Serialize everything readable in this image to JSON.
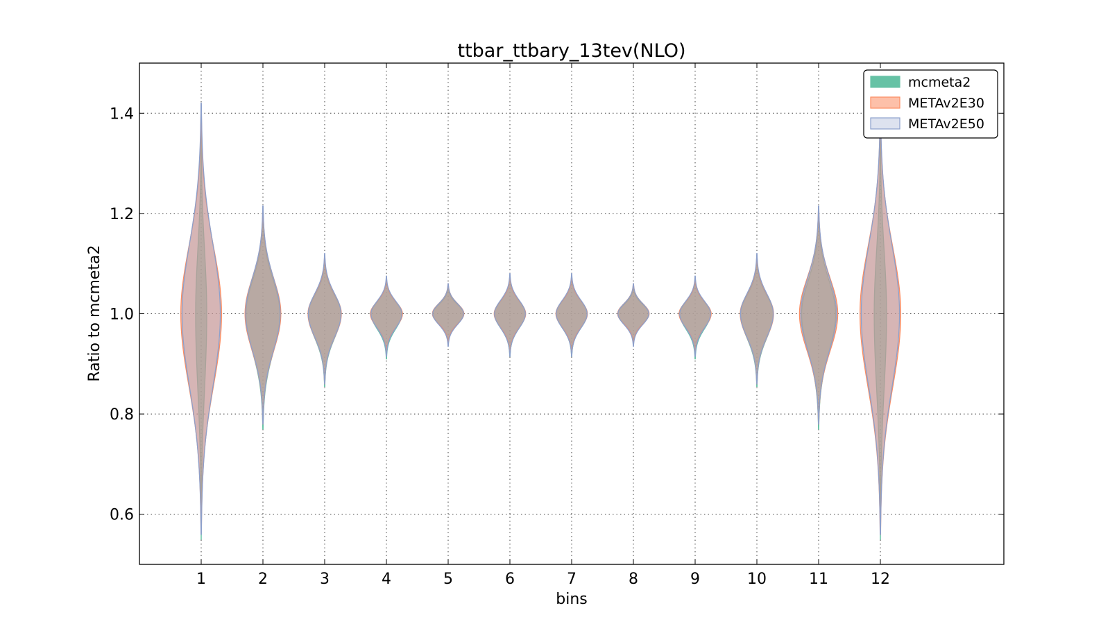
{
  "chart_data": {
    "type": "violin",
    "title": "ttbar_ttbary_13tev(NLO)",
    "xlabel": "bins",
    "ylabel": "Ratio to mcmeta2",
    "xlim": [
      0,
      14
    ],
    "ylim": [
      0.5,
      1.5
    ],
    "grid": true,
    "legend_position": "top-right",
    "x_ticks": [
      "1",
      "2",
      "3",
      "4",
      "5",
      "6",
      "7",
      "8",
      "9",
      "10",
      "11",
      "12"
    ],
    "y_ticks": [
      "0.6",
      "0.8",
      "1.0",
      "1.2",
      "1.4"
    ],
    "y_tick_values": [
      0.6,
      0.8,
      1.0,
      1.2,
      1.4
    ],
    "series": [
      {
        "name": "mcmeta2",
        "color": "#66c2a5",
        "bins": [
          {
            "bin": 1,
            "min": 0.55,
            "max": 1.38,
            "center": 1.0,
            "width": 0.18
          },
          {
            "bin": 2,
            "min": 0.77,
            "max": 1.2,
            "center": 1.0,
            "width": 0.55
          },
          {
            "bin": 3,
            "min": 0.855,
            "max": 1.11,
            "center": 1.0,
            "width": 0.53
          },
          {
            "bin": 4,
            "min": 0.91,
            "max": 1.07,
            "center": 1.0,
            "width": 0.5
          },
          {
            "bin": 5,
            "min": 0.94,
            "max": 1.055,
            "center": 1.0,
            "width": 0.5
          },
          {
            "bin": 6,
            "min": 0.915,
            "max": 1.075,
            "center": 1.0,
            "width": 0.5
          },
          {
            "bin": 7,
            "min": 0.915,
            "max": 1.075,
            "center": 1.0,
            "width": 0.5
          },
          {
            "bin": 8,
            "min": 0.94,
            "max": 1.055,
            "center": 1.0,
            "width": 0.5
          },
          {
            "bin": 9,
            "min": 0.91,
            "max": 1.07,
            "center": 1.0,
            "width": 0.5
          },
          {
            "bin": 10,
            "min": 0.855,
            "max": 1.11,
            "center": 1.0,
            "width": 0.53
          },
          {
            "bin": 11,
            "min": 0.77,
            "max": 1.2,
            "center": 1.0,
            "width": 0.55
          },
          {
            "bin": 12,
            "min": 0.55,
            "max": 1.38,
            "center": 1.0,
            "width": 0.2
          }
        ]
      },
      {
        "name": "METAv2E30",
        "color": "#fc8d62",
        "bins": [
          {
            "bin": 1,
            "min": 0.57,
            "max": 1.4,
            "center": 1.0,
            "width": 0.66
          },
          {
            "bin": 2,
            "min": 0.78,
            "max": 1.21,
            "center": 1.0,
            "width": 0.58
          },
          {
            "bin": 3,
            "min": 0.86,
            "max": 1.115,
            "center": 1.0,
            "width": 0.54
          },
          {
            "bin": 4,
            "min": 0.92,
            "max": 1.07,
            "center": 1.0,
            "width": 0.52
          },
          {
            "bin": 5,
            "min": 0.94,
            "max": 1.06,
            "center": 1.0,
            "width": 0.51
          },
          {
            "bin": 6,
            "min": 0.92,
            "max": 1.075,
            "center": 1.0,
            "width": 0.51
          },
          {
            "bin": 7,
            "min": 0.92,
            "max": 1.075,
            "center": 1.0,
            "width": 0.51
          },
          {
            "bin": 8,
            "min": 0.94,
            "max": 1.06,
            "center": 1.0,
            "width": 0.51
          },
          {
            "bin": 9,
            "min": 0.92,
            "max": 1.07,
            "center": 1.0,
            "width": 0.52
          },
          {
            "bin": 10,
            "min": 0.86,
            "max": 1.115,
            "center": 1.0,
            "width": 0.54
          },
          {
            "bin": 11,
            "min": 0.78,
            "max": 1.21,
            "center": 1.0,
            "width": 0.62
          },
          {
            "bin": 12,
            "min": 0.56,
            "max": 1.4,
            "center": 1.0,
            "width": 0.66
          }
        ]
      },
      {
        "name": "METAv2E50",
        "color": "#8da0cb",
        "bins": [
          {
            "bin": 1,
            "min": 0.56,
            "max": 1.42,
            "center": 1.0,
            "width": 0.62
          },
          {
            "bin": 2,
            "min": 0.78,
            "max": 1.215,
            "center": 1.0,
            "width": 0.56
          },
          {
            "bin": 3,
            "min": 0.86,
            "max": 1.12,
            "center": 1.0,
            "width": 0.53
          },
          {
            "bin": 4,
            "min": 0.915,
            "max": 1.075,
            "center": 1.0,
            "width": 0.5
          },
          {
            "bin": 5,
            "min": 0.935,
            "max": 1.06,
            "center": 1.0,
            "width": 0.5
          },
          {
            "bin": 6,
            "min": 0.915,
            "max": 1.08,
            "center": 1.0,
            "width": 0.5
          },
          {
            "bin": 7,
            "min": 0.915,
            "max": 1.08,
            "center": 1.0,
            "width": 0.5
          },
          {
            "bin": 8,
            "min": 0.935,
            "max": 1.06,
            "center": 1.0,
            "width": 0.5
          },
          {
            "bin": 9,
            "min": 0.915,
            "max": 1.075,
            "center": 1.0,
            "width": 0.5
          },
          {
            "bin": 10,
            "min": 0.86,
            "max": 1.12,
            "center": 1.0,
            "width": 0.53
          },
          {
            "bin": 11,
            "min": 0.78,
            "max": 1.215,
            "center": 1.0,
            "width": 0.58
          },
          {
            "bin": 12,
            "min": 0.56,
            "max": 1.41,
            "center": 1.0,
            "width": 0.62
          }
        ]
      }
    ]
  }
}
